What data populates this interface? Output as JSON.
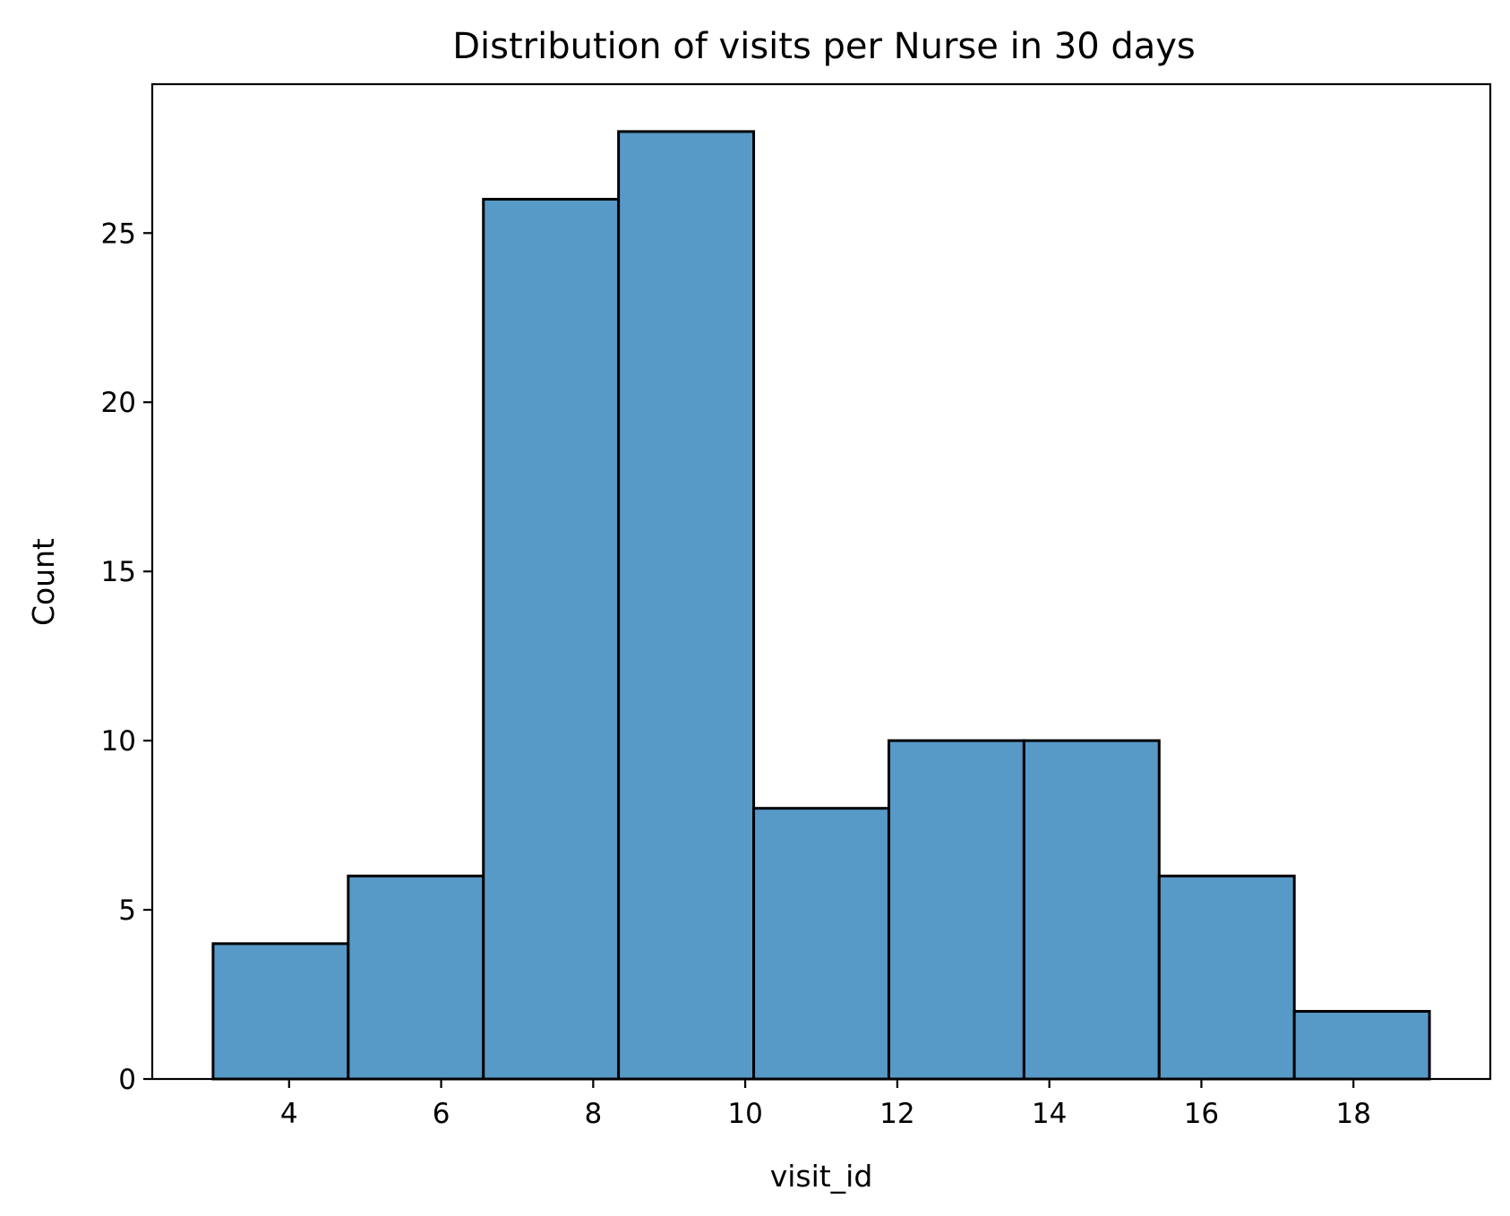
{
  "chart_data": {
    "type": "bar",
    "title": "Distribution of visits per Nurse in 30 days",
    "xlabel": "visit_id",
    "ylabel": "Count",
    "bin_edges": [
      3,
      4.7778,
      6.5556,
      8.3333,
      10.1111,
      11.8889,
      13.6667,
      15.4444,
      17.2222,
      19
    ],
    "values": [
      4,
      6,
      26,
      28,
      8,
      10,
      10,
      6,
      2
    ],
    "xlim": [
      2.2,
      19.8
    ],
    "ylim": [
      0,
      29.4
    ],
    "xticks": [
      4,
      6,
      8,
      10,
      12,
      14,
      16,
      18
    ],
    "yticks": [
      0,
      5,
      10,
      15,
      20,
      25
    ],
    "grid": false,
    "legend": "none",
    "bar_color": "#5799c7",
    "edge_color": "#000000"
  }
}
